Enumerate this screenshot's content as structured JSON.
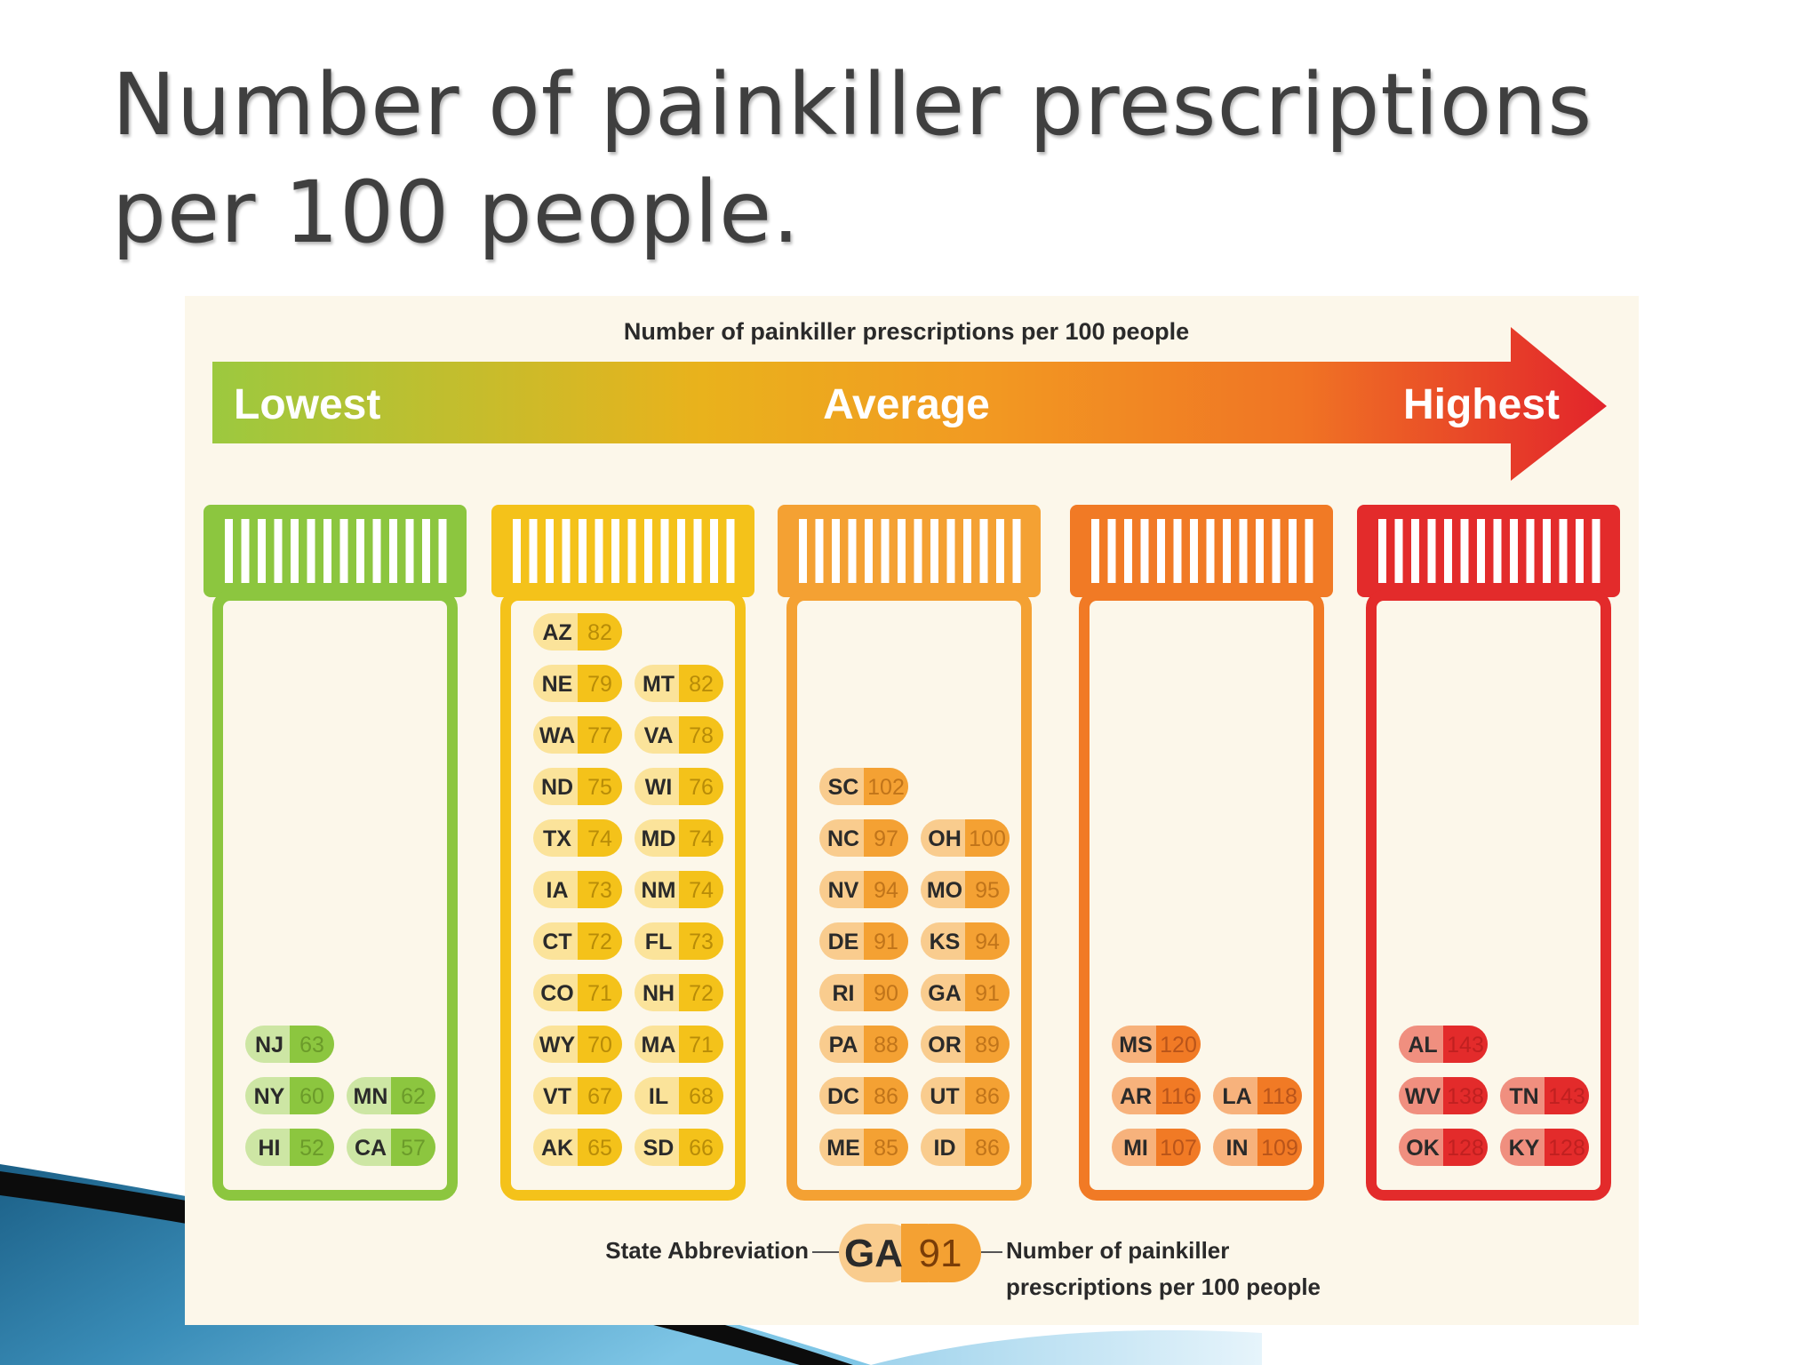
{
  "slide": {
    "title_line1": "Number of painkiller prescriptions",
    "title_line2": "per 100 people."
  },
  "chart_data": {
    "type": "table",
    "title": "Number of painkiller prescriptions per 100 people",
    "scale_labels": {
      "low": "Lowest",
      "mid": "Average",
      "high": "Highest"
    },
    "categories": [
      {
        "color": "#8cc63f",
        "pill_light": "#cde6a4",
        "pill_dark": "#8cc63f",
        "text": "#6b9b2a",
        "rows": [
          [
            {
              "state": "NJ",
              "value": 63
            }
          ],
          [
            {
              "state": "NY",
              "value": 60
            },
            {
              "state": "MN",
              "value": 62
            }
          ],
          [
            {
              "state": "HI",
              "value": 52
            },
            {
              "state": "CA",
              "value": 57
            }
          ]
        ]
      },
      {
        "color": "#f4c21a",
        "pill_light": "#fbe39a",
        "pill_dark": "#f4c21a",
        "text": "#b88c08",
        "rows": [
          [
            {
              "state": "AZ",
              "value": 82
            }
          ],
          [
            {
              "state": "NE",
              "value": 79
            },
            {
              "state": "MT",
              "value": 82
            }
          ],
          [
            {
              "state": "WA",
              "value": 77
            },
            {
              "state": "VA",
              "value": 78
            }
          ],
          [
            {
              "state": "ND",
              "value": 75
            },
            {
              "state": "WI",
              "value": 76
            }
          ],
          [
            {
              "state": "TX",
              "value": 74
            },
            {
              "state": "MD",
              "value": 74
            }
          ],
          [
            {
              "state": "IA",
              "value": 73
            },
            {
              "state": "NM",
              "value": 74
            }
          ],
          [
            {
              "state": "CT",
              "value": 72
            },
            {
              "state": "FL",
              "value": 73
            }
          ],
          [
            {
              "state": "CO",
              "value": 71
            },
            {
              "state": "NH",
              "value": 72
            }
          ],
          [
            {
              "state": "WY",
              "value": 70
            },
            {
              "state": "MA",
              "value": 71
            }
          ],
          [
            {
              "state": "VT",
              "value": 67
            },
            {
              "state": "IL",
              "value": 68
            }
          ],
          [
            {
              "state": "AK",
              "value": 65
            },
            {
              "state": "SD",
              "value": 66
            }
          ]
        ]
      },
      {
        "color": "#f4a133",
        "pill_light": "#f9cc8e",
        "pill_dark": "#f4a133",
        "text": "#c0741a",
        "rows": [
          [
            {
              "state": "SC",
              "value": 102
            }
          ],
          [
            {
              "state": "NC",
              "value": 97
            },
            {
              "state": "OH",
              "value": 100
            }
          ],
          [
            {
              "state": "NV",
              "value": 94
            },
            {
              "state": "MO",
              "value": 95
            }
          ],
          [
            {
              "state": "DE",
              "value": 91
            },
            {
              "state": "KS",
              "value": 94
            }
          ],
          [
            {
              "state": "RI",
              "value": 90
            },
            {
              "state": "GA",
              "value": 91
            }
          ],
          [
            {
              "state": "PA",
              "value": 88
            },
            {
              "state": "OR",
              "value": 89
            }
          ],
          [
            {
              "state": "DC",
              "value": 86
            },
            {
              "state": "UT",
              "value": 86
            }
          ],
          [
            {
              "state": "ME",
              "value": 85
            },
            {
              "state": "ID",
              "value": 86
            }
          ]
        ]
      },
      {
        "color": "#f17a25",
        "pill_light": "#f7b27c",
        "pill_dark": "#f17a25",
        "text": "#b8541a",
        "rows": [
          [
            {
              "state": "MS",
              "value": 120
            }
          ],
          [
            {
              "state": "AR",
              "value": 116
            },
            {
              "state": "LA",
              "value": 118
            }
          ],
          [
            {
              "state": "MI",
              "value": 107
            },
            {
              "state": "IN",
              "value": 109
            }
          ]
        ]
      },
      {
        "color": "#e32b2b",
        "pill_light": "#f08f7f",
        "pill_dark": "#e32b2b",
        "text": "#c02020",
        "rows": [
          [
            {
              "state": "AL",
              "value": 143
            }
          ],
          [
            {
              "state": "WV",
              "value": 138
            },
            {
              "state": "TN",
              "value": 143
            }
          ],
          [
            {
              "state": "OK",
              "value": 128
            },
            {
              "state": "KY",
              "value": 128
            }
          ]
        ]
      }
    ],
    "legend": {
      "state_label": "State Abbreviation",
      "example_state": "GA",
      "example_value": "91",
      "value_label_line1": "Number of painkiller",
      "value_label_line2": "prescriptions per 100 people"
    }
  }
}
